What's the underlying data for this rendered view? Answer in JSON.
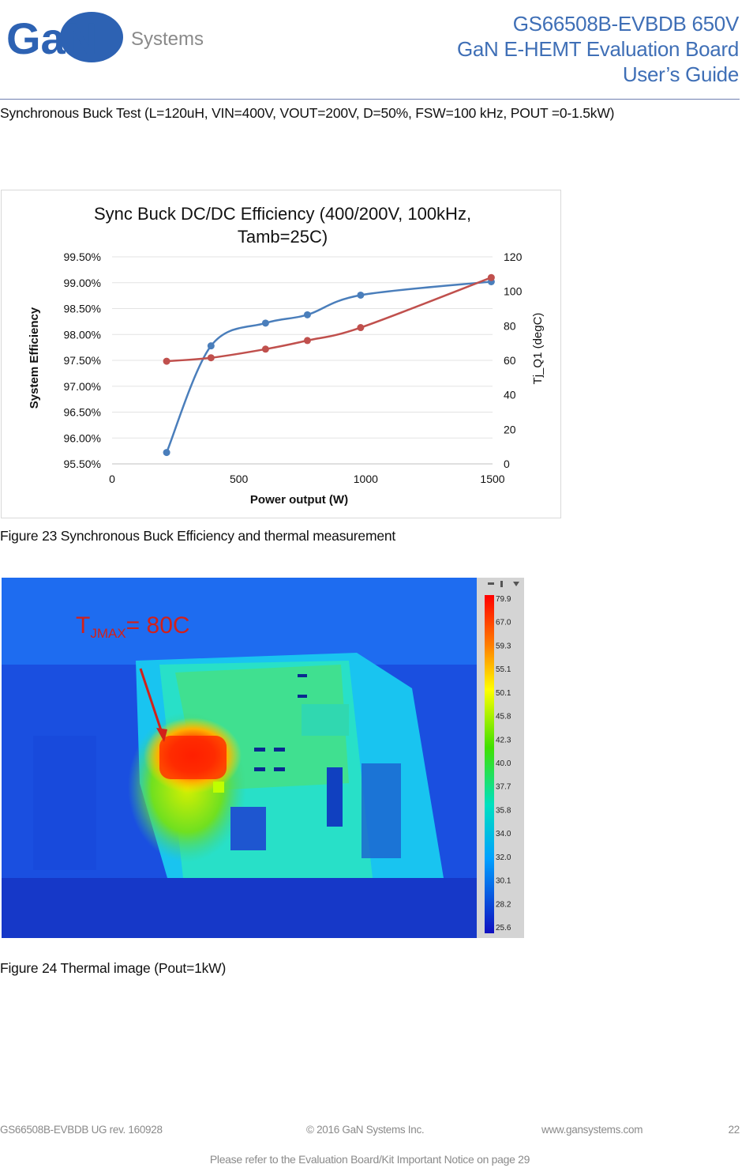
{
  "header": {
    "logo_text": "GaN",
    "logo_sub": "Systems",
    "title_line1": "GS66508B-EVBDB 650V",
    "title_line2": "GaN E-HEMT Evaluation Board",
    "title_line3": "User’s Guide",
    "brand_color": "#3f6fb6"
  },
  "intro": "Synchronous Buck Test (L=120uH, VIN=400V, VOUT=200V, D=50%, FSW=100 kHz, POUT =0-1.5kW)",
  "chart_data": {
    "type": "line",
    "title": "Sync Buck DC/DC Efficiency (400/200V, 100kHz, Tamb=25C)",
    "title_line1": "Sync Buck DC/DC Efficiency (400/200V, 100kHz,",
    "title_line2": "Tamb=25C)",
    "xlabel": "Power output (W)",
    "ylabel": "System Efficiency",
    "y2label": "Tj_Q1 (degC)",
    "xlim": [
      0,
      1500
    ],
    "ylim": [
      95.5,
      99.5
    ],
    "y2lim": [
      0,
      120
    ],
    "x_ticks": [
      "0",
      "500",
      "1000",
      "1500"
    ],
    "y_ticks": [
      "95.50%",
      "96.00%",
      "96.50%",
      "97.00%",
      "97.50%",
      "98.00%",
      "98.50%",
      "99.00%",
      "99.50%"
    ],
    "y2_ticks": [
      "0",
      "20",
      "40",
      "60",
      "80",
      "100",
      "120"
    ],
    "grid": true,
    "series": [
      {
        "axis": "left",
        "color": "#4a7ebb",
        "x": [
          215,
          390,
          605,
          770,
          980,
          1495
        ],
        "y": [
          95.72,
          97.78,
          98.22,
          98.38,
          98.76,
          99.02
        ]
      },
      {
        "axis": "right",
        "color": "#c0504d",
        "x": [
          215,
          390,
          605,
          770,
          980,
          1495
        ],
        "y": [
          59.5,
          61.5,
          66.5,
          71.5,
          79,
          108
        ]
      }
    ]
  },
  "caption1": "Figure 23 Synchronous Buck Efficiency and thermal measurement",
  "thermal": {
    "annotation": "T",
    "annotation_sub": "JMAX",
    "annotation_rest": "= 80C",
    "scale_labels": [
      "79.9",
      "67.0",
      "59.3",
      "55.1",
      "50.1",
      "45.8",
      "42.3",
      "40.0",
      "37.7",
      "35.8",
      "34.0",
      "32.0",
      "30.1",
      "28.2",
      "25.6"
    ]
  },
  "caption2": "Figure 24 Thermal image (Pout=1kW)",
  "footer": {
    "doc": "GS66508B-EVBDB UG rev. 160928",
    "copyright": "© 2016 GaN Systems Inc.",
    "web": "www.gansystems.com",
    "page": "22",
    "notice": "Please refer to the Evaluation Board/Kit Important Notice on page 29"
  }
}
